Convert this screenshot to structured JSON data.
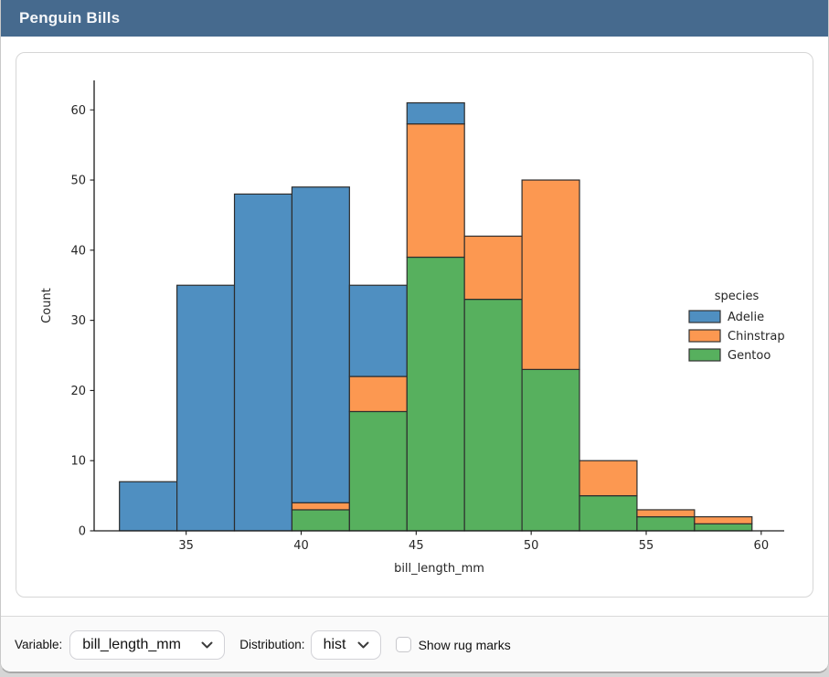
{
  "window": {
    "title": "Penguin Bills"
  },
  "chart_data": {
    "type": "bar",
    "subtype": "stacked-histogram",
    "title": "",
    "xlabel": "bill_length_mm",
    "ylabel": "Count",
    "xlim": [
      31.0,
      61.0
    ],
    "ylim": [
      0,
      64.2
    ],
    "x_ticks": [
      35,
      40,
      45,
      50,
      55,
      60
    ],
    "y_ticks": [
      0,
      10,
      20,
      30,
      40,
      50,
      60
    ],
    "grid": false,
    "bin_edges": [
      32.1,
      34.6,
      37.1,
      39.6,
      42.1,
      44.6,
      47.1,
      49.6,
      52.1,
      54.6,
      57.1,
      59.6
    ],
    "stack_order_bottom_to_top": [
      "Gentoo",
      "Chinstrap",
      "Adelie"
    ],
    "series": [
      {
        "name": "Adelie",
        "color": "#4f8fc1",
        "values": [
          7,
          35,
          48,
          45,
          13,
          3,
          0,
          0,
          0,
          0,
          0
        ]
      },
      {
        "name": "Chinstrap",
        "color": "#fc9851",
        "values": [
          0,
          0,
          0,
          1,
          5,
          19,
          9,
          27,
          5,
          1,
          1
        ]
      },
      {
        "name": "Gentoo",
        "color": "#57b05e",
        "values": [
          0,
          0,
          0,
          3,
          17,
          39,
          33,
          23,
          5,
          2,
          1
        ]
      }
    ],
    "bin_totals": [
      7,
      35,
      48,
      49,
      35,
      61,
      42,
      50,
      10,
      3,
      2
    ],
    "legend": {
      "title": "species",
      "position": "right",
      "entries": [
        "Adelie",
        "Chinstrap",
        "Gentoo"
      ]
    },
    "edge_color": "#2d2d2d",
    "axis_color": "#1a1a1a",
    "text_color": "#262626"
  },
  "controls": {
    "variable_label": "Variable:",
    "variable_value": "bill_length_mm",
    "distribution_label": "Distribution:",
    "distribution_value": "hist",
    "rug_label": "Show rug marks",
    "rug_checked": false
  },
  "colors": {
    "titlebar": "#466a8e",
    "card_border": "#d6d6d6",
    "bottombar_bg": "#fafafa"
  }
}
